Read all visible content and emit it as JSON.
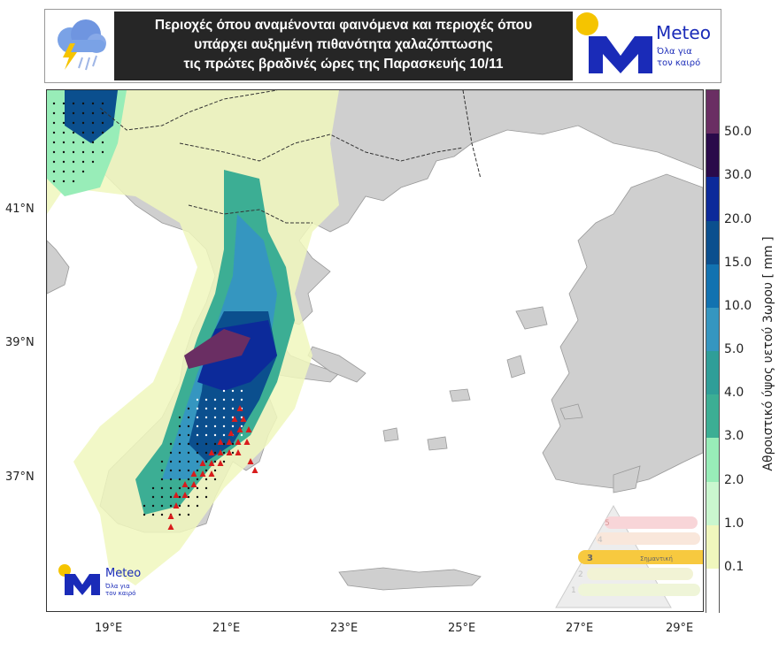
{
  "header": {
    "title_lines": [
      "Περιοχές όπου αναμένονται φαινόμενα και περιοχές όπου",
      "υπάρχει αυξημένη πιθανότητα χαλαζόπτωσης",
      "τις πρώτες βραδινές ώρες της Παρασκευής 10/11"
    ],
    "weather_icon": "storm-cloud-icon"
  },
  "logo": {
    "name": "Meteo",
    "tagline_1": "Όλα για",
    "tagline_2": "τον καιρό",
    "brand_color": "#1a2bb8",
    "sun_color": "#f5c400"
  },
  "axes": {
    "lat_labels": [
      "41°N",
      "39°N",
      "37°N"
    ],
    "lon_labels": [
      "19°E",
      "21°E",
      "23°E",
      "25°E",
      "27°E",
      "29°E"
    ]
  },
  "colorbar": {
    "label": "Αθροιστικό ύψος υετού 3ωρου [ mm ]",
    "ticks": [
      "50.0",
      "30.0",
      "20.0",
      "15.0",
      "10.0",
      "5.0",
      "4.0",
      "3.0",
      "2.0",
      "1.0",
      "0.1"
    ],
    "colors": [
      "#6a2e63",
      "#2a0a4a",
      "#0c2a9a",
      "#0b4f8e",
      "#1272b0",
      "#3596c0",
      "#2f9e98",
      "#3cae94",
      "#98edb8",
      "#caf7cf",
      "#f0f7bd",
      "#ffffff"
    ]
  },
  "legend": {
    "levels": [
      "1",
      "2",
      "3",
      "4",
      "5"
    ],
    "active_level": "3",
    "active_label": "Σημαντική",
    "active_color": "#f5b800"
  },
  "colors": {
    "land": "#cfcfcf",
    "sea": "#ffffff",
    "hail_marker": "#d81c1c",
    "dots": "#111111"
  }
}
